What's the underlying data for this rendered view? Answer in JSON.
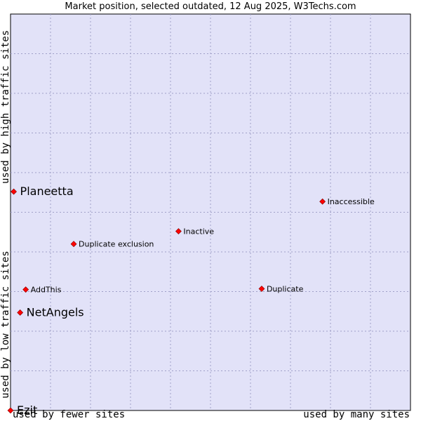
{
  "title": "Market position, selected outdated, 12 Aug 2025, W3Techs.com",
  "axis_labels": {
    "x_low": "used by fewer sites",
    "x_high": "used by many sites",
    "y_low": "used by low traffic sites",
    "y_high": "used by high traffic sites"
  },
  "colors": {
    "plot_background": "#e2e2f8",
    "grid": "#a0a0c8",
    "marker": "#ff0000",
    "marker_outline": "#800000"
  },
  "chart_data": {
    "type": "scatter",
    "title": "Market position, selected outdated, 12 Aug 2025, W3Techs.com",
    "xlabel": "",
    "ylabel": "",
    "xlim": [
      0,
      10
    ],
    "ylim": [
      0,
      10
    ],
    "grid": true,
    "points": [
      {
        "label": "Planeetta",
        "x": 0.08,
        "y": 5.52,
        "emphasis": true
      },
      {
        "label": "Inaccessible",
        "x": 7.8,
        "y": 5.27,
        "emphasis": false
      },
      {
        "label": "Inactive",
        "x": 4.2,
        "y": 4.52,
        "emphasis": false
      },
      {
        "label": "Duplicate exclusion",
        "x": 1.58,
        "y": 4.2,
        "emphasis": false
      },
      {
        "label": "AddThis",
        "x": 0.38,
        "y": 3.05,
        "emphasis": false
      },
      {
        "label": "Duplicate",
        "x": 6.28,
        "y": 3.07,
        "emphasis": false
      },
      {
        "label": "NetAngels",
        "x": 0.24,
        "y": 2.47,
        "emphasis": true
      },
      {
        "label": "Ezit",
        "x": 0.0,
        "y": 0.0,
        "emphasis": true
      }
    ]
  }
}
